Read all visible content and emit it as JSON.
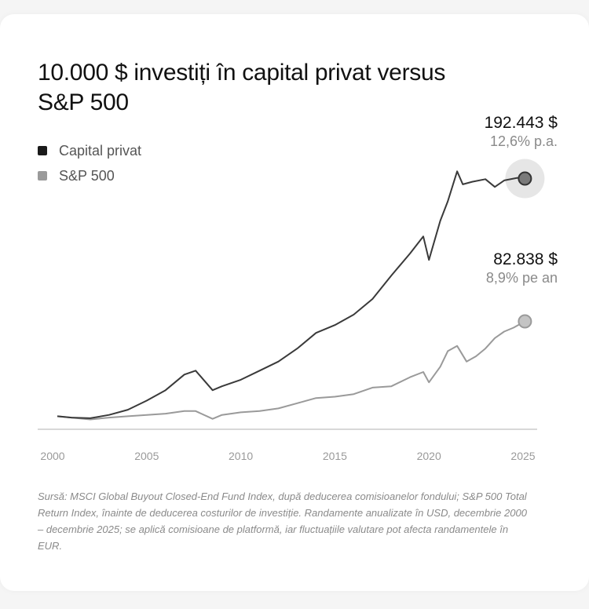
{
  "title": "10.000 $ investiți în capital privat versus S&P 500",
  "legend": [
    {
      "label": "Capital privat",
      "color": "#1a1a1a"
    },
    {
      "label": "S&P 500",
      "color": "#9a9a9a"
    }
  ],
  "annotations": {
    "pe": {
      "value": "192.443 $",
      "rate": "12,6% p.a."
    },
    "sp": {
      "value": "82.838 $",
      "rate": "8,9% pe an"
    }
  },
  "footnote": "Sursă: MSCI Global Buyout Closed-End Fund Index, după deducerea comisioanelor fondului; S&P 500 Total Return Index, înainte de deducerea costurilor de investiție. Randamente anualizate în USD, decembrie 2000 – decembrie 2025; se aplică comisioane de platformă, iar fluctuațiile valutare pot afecta randamentele în EUR.",
  "colors": {
    "pe_line": "#3a3a3a",
    "sp_line": "#9a9a9a",
    "axis": "#cccccc",
    "halo": "#e6e6e6"
  },
  "chart_data": {
    "type": "line",
    "xlim": [
      2000,
      2025
    ],
    "ylim": [
      0,
      200000
    ],
    "xticks": [
      2000,
      2005,
      2010,
      2015,
      2020,
      2025
    ],
    "series": [
      {
        "name": "Capital privat",
        "x": [
          2000.25,
          2001,
          2002,
          2003,
          2004,
          2005,
          2006,
          2007,
          2007.6,
          2008.5,
          2009,
          2010,
          2011,
          2012,
          2013,
          2014,
          2015,
          2016,
          2017,
          2018,
          2019,
          2019.7,
          2020,
          2020.6,
          2021,
          2021.5,
          2021.8,
          2022.3,
          2023,
          2023.5,
          2024,
          2024.7,
          2025.1
        ],
        "y": [
          10000,
          9000,
          8500,
          11000,
          15000,
          22000,
          30000,
          42000,
          45000,
          30000,
          33000,
          38000,
          45000,
          52000,
          62000,
          74000,
          80000,
          88000,
          100000,
          118000,
          135000,
          148000,
          130000,
          160000,
          175000,
          198000,
          188000,
          190000,
          192000,
          186000,
          191000,
          193000,
          192443
        ]
      },
      {
        "name": "S&P 500",
        "x": [
          2000.25,
          2001,
          2002,
          2003,
          2004,
          2005,
          2006,
          2007,
          2007.6,
          2008.5,
          2009,
          2010,
          2011,
          2012,
          2013,
          2014,
          2015,
          2016,
          2017,
          2018,
          2019,
          2019.7,
          2020,
          2020.6,
          2021,
          2021.5,
          2022,
          2022.5,
          2023,
          2023.5,
          2024,
          2024.5,
          2025.1
        ],
        "y": [
          10000,
          9000,
          7500,
          9000,
          10000,
          11000,
          12000,
          14000,
          14000,
          8000,
          11000,
          13000,
          14000,
          16000,
          20000,
          24000,
          25000,
          27000,
          32000,
          33000,
          40000,
          44000,
          36000,
          48000,
          60000,
          64000,
          52000,
          56000,
          62000,
          70000,
          75000,
          78000,
          82838
        ]
      }
    ]
  }
}
